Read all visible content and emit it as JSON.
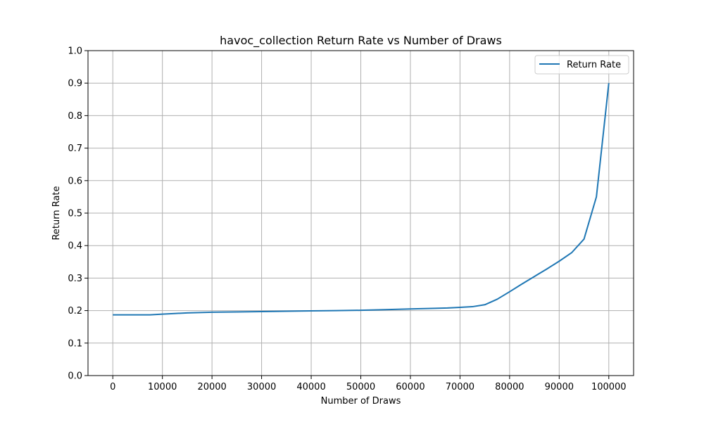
{
  "chart_data": {
    "type": "line",
    "title": "havoc_collection Return Rate vs Number of Draws",
    "xlabel": "Number of Draws",
    "ylabel": "Return Rate",
    "xlim": [
      -5000,
      105000
    ],
    "ylim": [
      0.0,
      1.0
    ],
    "xticks": [
      "0",
      "10000",
      "20000",
      "30000",
      "40000",
      "50000",
      "60000",
      "70000",
      "80000",
      "90000",
      "100000"
    ],
    "yticks": [
      "0.0",
      "0.1",
      "0.2",
      "0.3",
      "0.4",
      "0.5",
      "0.6",
      "0.7",
      "0.8",
      "0.9",
      "1.0"
    ],
    "grid": true,
    "legend_position": "top-right",
    "series": [
      {
        "name": "Return Rate",
        "color": "#1f77b4",
        "x": [
          0,
          2500,
          5000,
          7500,
          10000,
          12500,
          15000,
          17500,
          20000,
          25000,
          30000,
          35000,
          40000,
          45000,
          50000,
          55000,
          60000,
          65000,
          67500,
          70000,
          72500,
          75000,
          77500,
          80000,
          82500,
          85000,
          87500,
          90000,
          92500,
          95000,
          97500,
          100000
        ],
        "y": [
          0.187,
          0.187,
          0.187,
          0.187,
          0.189,
          0.191,
          0.193,
          0.194,
          0.195,
          0.196,
          0.197,
          0.198,
          0.199,
          0.2,
          0.201,
          0.203,
          0.205,
          0.207,
          0.208,
          0.21,
          0.212,
          0.218,
          0.235,
          0.258,
          0.282,
          0.305,
          0.328,
          0.352,
          0.378,
          0.42,
          0.55,
          0.9
        ]
      }
    ]
  }
}
